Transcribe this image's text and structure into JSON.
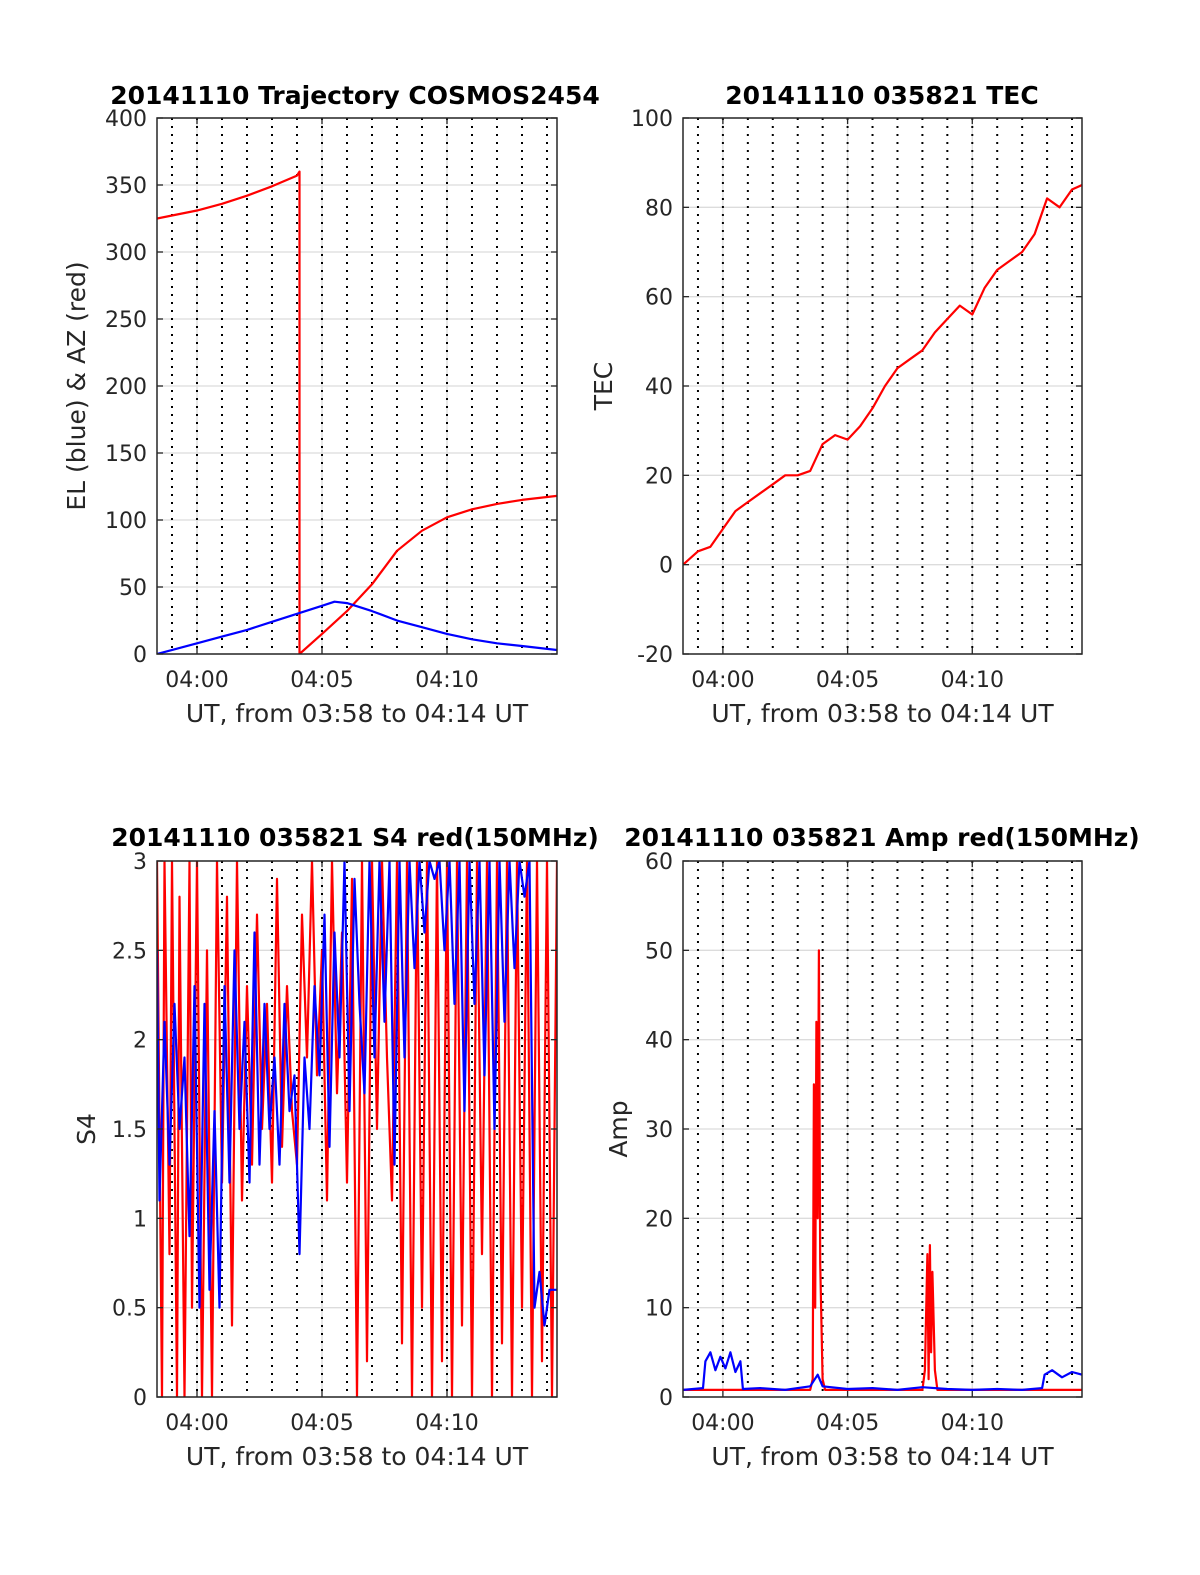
{
  "colors": {
    "az": "#ff0000",
    "el": "#0000ff",
    "red": "#ff0000",
    "blue": "#0000ff",
    "grid": "#dcdcdc",
    "vline": "#000000"
  },
  "chart_data": [
    {
      "type": "line",
      "title": "20141110 Trajectory COSMOS2454",
      "xlabel": "UT, from 03:58 to 04:14 UT",
      "ylabel": "EL (blue) & AZ (red)",
      "xlim_min": [
        -1.6,
        14.4
      ],
      "x_ticks": [
        0,
        5,
        10
      ],
      "x_tick_labels": [
        "04:00",
        "04:05",
        "04:10"
      ],
      "ylim": [
        0,
        400
      ],
      "y_ticks": [
        0,
        50,
        100,
        150,
        200,
        250,
        300,
        350,
        400
      ],
      "y_tick_labels": [
        "0",
        "50",
        "100",
        "150",
        "200",
        "250",
        "300",
        "350",
        "400"
      ],
      "grid": true,
      "series": [
        {
          "color": "#ff0000",
          "x": [
            -1.6,
            0,
            1,
            2,
            3,
            4,
            4.1,
            4.1,
            5,
            6,
            7,
            8,
            9,
            10,
            11,
            12,
            13,
            14.4
          ],
          "y": [
            325,
            331,
            336,
            342,
            349,
            357,
            360,
            0,
            15,
            32,
            52,
            77,
            92,
            102,
            108,
            112,
            115,
            118
          ]
        },
        {
          "color": "#0000ff",
          "x": [
            -1.6,
            0,
            1,
            2,
            3,
            4,
            5,
            5.5,
            6,
            7,
            8,
            9,
            10,
            11,
            12,
            13,
            14.4
          ],
          "y": [
            0,
            8,
            13,
            18,
            24,
            30,
            36,
            39,
            38,
            32,
            25,
            20,
            15,
            11,
            8,
            6,
            3
          ]
        }
      ]
    },
    {
      "type": "line",
      "title": "20141110 035821 TEC",
      "xlabel": "UT, from 03:58 to 04:14 UT",
      "ylabel": "TEC",
      "xlim_min": [
        -1.6,
        14.4
      ],
      "x_ticks": [
        0,
        5,
        10
      ],
      "x_tick_labels": [
        "04:00",
        "04:05",
        "04:10"
      ],
      "ylim": [
        -20,
        100
      ],
      "y_ticks": [
        -20,
        0,
        20,
        40,
        60,
        80,
        100
      ],
      "y_tick_labels": [
        "-20",
        "0",
        "20",
        "40",
        "60",
        "80",
        "100"
      ],
      "grid": true,
      "series": [
        {
          "color": "#ff0000",
          "x": [
            -1.6,
            -1,
            -0.5,
            0,
            0.5,
            1,
            1.5,
            2,
            2.5,
            3,
            3.5,
            4,
            4.5,
            5,
            5.5,
            6,
            6.5,
            7,
            7.5,
            8,
            8.5,
            9,
            9.5,
            10,
            10.5,
            11,
            11.5,
            12,
            12.5,
            13,
            13.5,
            14,
            14.4
          ],
          "y": [
            0,
            3,
            4,
            8,
            12,
            14,
            16,
            18,
            20,
            20,
            21,
            27,
            29,
            28,
            31,
            35,
            40,
            44,
            46,
            48,
            52,
            55,
            58,
            56,
            62,
            66,
            68,
            70,
            74,
            82,
            80,
            84,
            85
          ]
        }
      ]
    },
    {
      "type": "line",
      "title": "20141110 035821 S4 red(150MHz)",
      "xlabel": "UT, from 03:58 to 04:14 UT",
      "ylabel": "S4",
      "xlim_min": [
        -1.6,
        14.4
      ],
      "x_ticks": [
        0,
        5,
        10
      ],
      "x_tick_labels": [
        "04:00",
        "04:05",
        "04:10"
      ],
      "ylim": [
        0,
        3
      ],
      "y_ticks": [
        0,
        0.5,
        1,
        1.5,
        2,
        2.5,
        3
      ],
      "y_tick_labels": [
        "0",
        "0.5",
        "1",
        "1.5",
        "2",
        "2.5",
        "3"
      ],
      "grid": true,
      "series": [
        {
          "color": "#ff0000",
          "x": [
            -1.6,
            -1.4,
            -1.3,
            -1.1,
            -1,
            -0.8,
            -0.7,
            -0.5,
            -0.3,
            -0.2,
            0,
            0.2,
            0.4,
            0.6,
            0.8,
            1,
            1.2,
            1.4,
            1.6,
            1.8,
            2,
            2.2,
            2.4,
            2.6,
            2.8,
            3,
            3.2,
            3.4,
            3.6,
            3.8,
            4,
            4.2,
            4.4,
            4.6,
            4.8,
            5,
            5.2,
            5.4,
            5.6,
            5.8,
            6,
            6.2,
            6.4,
            6.6,
            6.8,
            7,
            7.2,
            7.4,
            7.6,
            7.8,
            8,
            8.2,
            8.4,
            8.6,
            8.8,
            9,
            9.2,
            9.4,
            9.6,
            9.8,
            10,
            10.2,
            10.4,
            10.6,
            10.8,
            11,
            11.2,
            11.4,
            11.6,
            11.8,
            12,
            12.2,
            12.4,
            12.6,
            12.8,
            13,
            13.2,
            13.4,
            13.6,
            13.8,
            14,
            14.2,
            14.4
          ],
          "y": [
            3,
            0,
            3,
            0.8,
            3,
            0,
            2.8,
            0,
            3,
            0.5,
            3,
            0,
            2.5,
            0,
            3,
            1.2,
            2.8,
            0.4,
            3,
            1.1,
            2.3,
            1.3,
            2.7,
            1.5,
            2.2,
            1.2,
            2.9,
            1.4,
            2.3,
            1.6,
            1.3,
            2.7,
            1.9,
            3,
            1.8,
            2.5,
            1.1,
            3,
            1.7,
            2.6,
            1.2,
            2.9,
            0,
            3,
            0.2,
            3,
            1.5,
            3,
            1.9,
            1.1,
            3,
            0.3,
            3,
            0,
            3,
            0.5,
            3,
            0,
            3,
            0.2,
            3,
            0,
            3,
            0.4,
            3,
            0,
            3,
            0.8,
            3,
            0,
            3,
            0.3,
            3,
            0,
            3,
            0.5,
            3,
            0,
            3,
            0.2,
            3,
            0,
            3
          ]
        },
        {
          "color": "#0000ff",
          "x": [
            -1.6,
            -1.5,
            -1.3,
            -1.1,
            -0.9,
            -0.7,
            -0.5,
            -0.3,
            -0.1,
            0.1,
            0.3,
            0.5,
            0.7,
            0.9,
            1.1,
            1.3,
            1.5,
            1.7,
            1.9,
            2.1,
            2.3,
            2.5,
            2.7,
            2.9,
            3.1,
            3.3,
            3.5,
            3.7,
            3.9,
            4.1,
            4.3,
            4.5,
            4.7,
            4.9,
            5.1,
            5.3,
            5.5,
            5.7,
            5.9,
            6.1,
            6.3,
            6.5,
            6.7,
            6.9,
            7.1,
            7.3,
            7.5,
            7.7,
            7.9,
            8.1,
            8.3,
            8.5,
            8.7,
            8.9,
            9.1,
            9.3,
            9.5,
            9.7,
            9.9,
            10.1,
            10.3,
            10.5,
            10.7,
            10.9,
            11.1,
            11.3,
            11.5,
            11.7,
            11.9,
            12.1,
            12.3,
            12.5,
            12.7,
            12.9,
            13.1,
            13.3,
            13.5,
            13.7,
            13.9,
            14.1,
            14.4
          ],
          "y": [
            2.5,
            1.1,
            2.1,
            1.3,
            2.2,
            1.5,
            1.9,
            0.9,
            2.3,
            0.5,
            2.2,
            0.6,
            1.6,
            0.5,
            2.3,
            1.2,
            2.5,
            1.5,
            2.1,
            1.2,
            2.6,
            1.3,
            2.2,
            1.5,
            1.9,
            1.3,
            2.2,
            1.6,
            1.8,
            0.8,
            1.9,
            1.5,
            2.3,
            1.8,
            2.7,
            1.4,
            2.6,
            1.9,
            3,
            1.6,
            2.9,
            2.2,
            1.7,
            3,
            1.9,
            3,
            2.1,
            3,
            1.3,
            3,
            1.9,
            3,
            2.4,
            3,
            2.6,
            3,
            2.9,
            3,
            2.5,
            3,
            2.2,
            3,
            1.6,
            3,
            2.2,
            3,
            1.8,
            3,
            1.5,
            3,
            2.1,
            3,
            2.4,
            3,
            2.8,
            3,
            0.5,
            0.7,
            0.4,
            0.6,
            0.6
          ]
        }
      ]
    },
    {
      "type": "line",
      "title": "20141110 035821 Amp red(150MHz)",
      "xlabel": "UT, from 03:58 to 04:14 UT",
      "ylabel": "Amp",
      "xlim_min": [
        -1.6,
        14.4
      ],
      "x_ticks": [
        0,
        5,
        10
      ],
      "x_tick_labels": [
        "04:00",
        "04:05",
        "04:10"
      ],
      "ylim": [
        0,
        60
      ],
      "y_ticks": [
        0,
        10,
        20,
        30,
        40,
        50,
        60
      ],
      "y_tick_labels": [
        "0",
        "10",
        "20",
        "30",
        "40",
        "50",
        "60"
      ],
      "grid": true,
      "series": [
        {
          "color": "#ff0000",
          "x": [
            -1.6,
            3.5,
            3.6,
            3.65,
            3.7,
            3.75,
            3.8,
            3.85,
            3.9,
            4.0,
            4.1,
            8.0,
            8.1,
            8.2,
            8.25,
            8.3,
            8.35,
            8.4,
            8.5,
            8.6,
            14.4
          ],
          "y": [
            0.8,
            0.8,
            2,
            35,
            10,
            42,
            20,
            50,
            15,
            2,
            0.8,
            0.8,
            3,
            16,
            2,
            17,
            5,
            14,
            3,
            0.8,
            0.8
          ]
        },
        {
          "color": "#0000ff",
          "x": [
            -1.6,
            -0.8,
            -0.7,
            -0.5,
            -0.3,
            -0.1,
            0.1,
            0.3,
            0.5,
            0.7,
            0.8,
            1.5,
            2.5,
            3.5,
            3.8,
            4.0,
            5,
            6,
            7,
            8,
            9,
            10,
            11,
            12,
            12.8,
            12.9,
            13.2,
            13.6,
            14.0,
            14.4
          ],
          "y": [
            0.8,
            1.0,
            4,
            5,
            3,
            4.5,
            3.2,
            5,
            2.8,
            4,
            0.9,
            1.0,
            0.8,
            1.2,
            2.5,
            1.2,
            0.9,
            1.0,
            0.8,
            1.1,
            0.9,
            0.8,
            0.9,
            0.8,
            1.0,
            2.5,
            3,
            2.2,
            2.8,
            2.5
          ]
        }
      ]
    }
  ]
}
